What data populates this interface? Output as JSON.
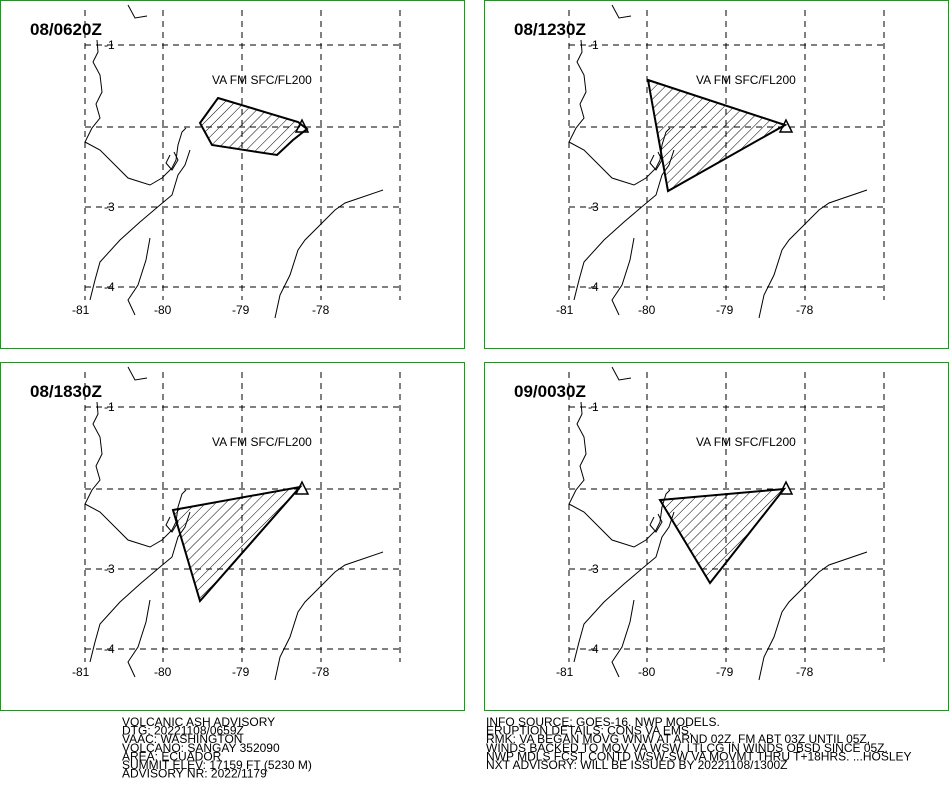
{
  "panels": [
    {
      "time": "08/0620Z",
      "level": "VA FM SFC/FL200"
    },
    {
      "time": "08/1230Z",
      "level": "VA FM SFC/FL200"
    },
    {
      "time": "08/1830Z",
      "level": "VA FM SFC/FL200"
    },
    {
      "time": "09/0030Z",
      "level": "VA FM SFC/FL200"
    }
  ],
  "lat_labels": [
    "-1",
    "-3",
    "-4"
  ],
  "lon_labels": [
    "-81",
    "-80",
    "-79",
    "-78"
  ],
  "advisory_left": [
    "VOLCANIC ASH ADVISORY",
    "DTG: 20221108/0659Z",
    "VAAC: WASHINGTON",
    "VOLCANO: SANGAY 352090",
    "AREA: ECUADOR",
    "SUMMIT ELEV: 17159 FT (5230 M)",
    "ADVISORY NR: 2022/1179"
  ],
  "advisory_right": [
    "INFO SOURCE: GOES-16. NWP MODELS.",
    "ERUPTION DETAILS: CONS VA EMS.",
    "RMK: VA BEGAN MOVG WNW AT ARND 02Z. FM ABT 03Z UNTIL 05Z,",
    "WINDS BACKED TO MOV VA WSW. LTLCG IN WINDS OBSD SINCE 05Z.",
    "NWP MDLS FCST CONTD WSW-SW VA MOVMT THRU T+18HRS. ...HOSLEY",
    "NXT ADVISORY: WILL BE ISSUED BY 20221108/1300Z"
  ]
}
